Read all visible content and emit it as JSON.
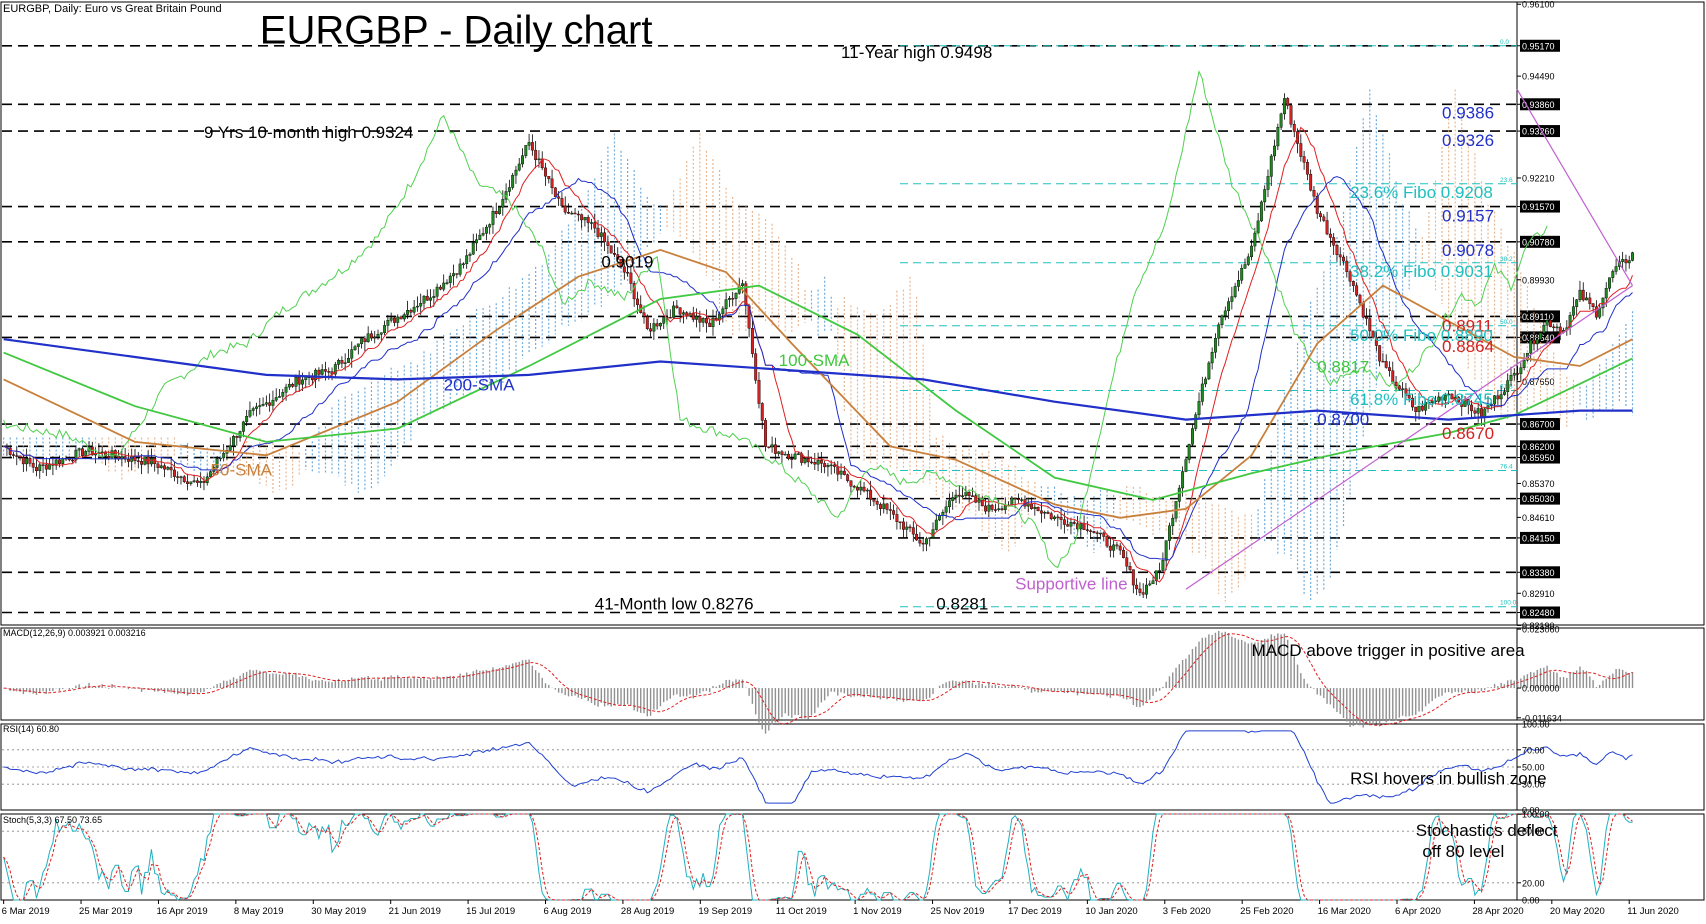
{
  "header": {
    "main": "EURGBP, Daily:  Euro vs Great Britain Pound",
    "macd": "MACD(12,26,9) 0.003921 0.003216",
    "rsi": "RSI(14) 60.80",
    "stoch": "Stoch(5,3,3) 67.50 73.65"
  },
  "colors": {
    "candle_up": "#208820",
    "candle_down": "#d42020",
    "sma50": "#c8803c",
    "sma100": "#40c840",
    "sma200": "#2030c8",
    "tenkan": "#e02020",
    "kijun": "#2030c8",
    "chikou": "#50d050",
    "cloud_bull": "#4090d0",
    "cloud_bear": "#e0a070",
    "fibo": "#20c0c0",
    "support": "#c060d0",
    "rsi": "#2040d0",
    "stoch_main": "#20b0c0",
    "stoch_signal": "#e02020",
    "macd_hist": "#909090",
    "macd_signal": "#e02020"
  },
  "price_scale": {
    "ymin": 0.822,
    "ymax": 0.9615,
    "ticks": [
      "0.96100",
      "0.95170",
      "0.94490",
      "0.93860",
      "0.93260",
      "0.92210",
      "0.91570",
      "0.90780",
      "0.89930",
      "0.89110",
      "0.88640",
      "0.87650",
      "0.86700",
      "0.86200",
      "0.85950",
      "0.85370",
      "0.85030",
      "0.84610",
      "0.84150",
      "0.83380",
      "0.82910",
      "0.82480",
      "0.82190"
    ],
    "highlighted": [
      "0.95170",
      "0.93860",
      "0.93260",
      "0.91570",
      "0.90780",
      "0.89110",
      "0.88640",
      "0.86700",
      "0.86200",
      "0.85950",
      "0.85030",
      "0.84150",
      "0.83380",
      "0.82480"
    ]
  },
  "dashed_levels": [
    0.9517,
    0.9386,
    0.9326,
    0.9157,
    0.9078,
    0.8911,
    0.8864,
    0.867,
    0.862,
    0.8595,
    0.8503,
    0.8415,
    0.8338,
    0.8248
  ],
  "fibo_levels": [
    {
      "price": 0.9517,
      "tag": "0.0"
    },
    {
      "price": 0.9208,
      "tag": "23.6"
    },
    {
      "price": 0.9031,
      "tag": "38.2"
    },
    {
      "price": 0.889,
      "tag": "50.0"
    },
    {
      "price": 0.8745,
      "tag": "61.8"
    },
    {
      "price": 0.8566,
      "tag": "76.4"
    },
    {
      "price": 0.8261,
      "tag": "100.0"
    }
  ],
  "annotations": {
    "title": "EURGBP - Daily chart",
    "high_11y": "11-Year high 0.9498",
    "high_9y": "9 Yrs 10-month high 0.9324",
    "level_9019": "0.9019",
    "low_41m": "41-Month low 0.8276",
    "low_8281": "0.8281",
    "sma100": "100-SMA",
    "sma200": "200-SMA",
    "sma50": "50-SMA",
    "support": "Supportive line",
    "r_9386": "0.9386",
    "r_9326": "0.9326",
    "fib236": "23.6% Fibo 0.9208",
    "r_9157": "0.9157",
    "r_9078": "0.9078",
    "fib382": "38.2% Fibo 0.9031",
    "r_8911": "0.8911",
    "fib500": "50.0% Fibo 0.8890",
    "r_8864": "0.8864",
    "r_8817": "0.8817",
    "fib618": "61.8% Fibo 0.8745",
    "r_8700": "0.8700",
    "r_8670": "0.8670",
    "macd_note": "MACD above trigger in positive area",
    "rsi_note": "RSI hovers in bullish zone",
    "stoch_note1": "Stochastics deflect",
    "stoch_note2": "off 80 level"
  },
  "macd_scale": {
    "ymin": -0.0125,
    "ymax": 0.0235,
    "ticks": [
      "0.023060",
      "0.000000",
      "-0.011634"
    ]
  },
  "rsi_scale": {
    "ticks": [
      "100.00",
      "70.00",
      "50.00",
      "30.00",
      "0.00"
    ]
  },
  "stoch_scale": {
    "ticks": [
      "100.00",
      "80.00",
      "20.00",
      "0.00"
    ]
  },
  "date_labels": [
    "6 Mar 2019",
    "25 Mar 2019",
    "16 Apr 2019",
    "8 May 2019",
    "30 May 2019",
    "21 Jun 2019",
    "15 Jul 2019",
    "6 Aug 2019",
    "28 Aug 2019",
    "19 Sep 2019",
    "11 Oct 2019",
    "1 Nov 2019",
    "25 Nov 2019",
    "17 Dec 2019",
    "10 Jan 2020",
    "3 Feb 2020",
    "25 Feb 2020",
    "16 Mar 2020",
    "6 Apr 2020",
    "28 Apr 2020",
    "20 May 2020",
    "11 Jun 2020"
  ],
  "chart_data": {
    "type": "candlestick",
    "title": "EURGBP, Daily:  Euro vs Great Britain Pound",
    "annotation": "EURGBP - Daily chart",
    "x_range": [
      "6 Mar 2019",
      "24 Jun 2020"
    ],
    "ylim": [
      0.8219,
      0.961
    ],
    "close_path": {
      "x": [
        0,
        10,
        25,
        45,
        60,
        75,
        90,
        100,
        110,
        120,
        130,
        140,
        150,
        160,
        170,
        180,
        190,
        196,
        205,
        215,
        225,
        232,
        240,
        250,
        260,
        270,
        280,
        290,
        300,
        310,
        320,
        330,
        340,
        346,
        352,
        360,
        370,
        380,
        390,
        400,
        410,
        420,
        430,
        440,
        450,
        460,
        466,
        470,
        475,
        480,
        485,
        490,
        496
      ],
      "y": [
        0.862,
        0.857,
        0.861,
        0.8585,
        0.8532,
        0.869,
        0.877,
        0.879,
        0.886,
        0.891,
        0.896,
        0.903,
        0.915,
        0.93,
        0.915,
        0.911,
        0.9,
        0.888,
        0.893,
        0.889,
        0.899,
        0.862,
        0.86,
        0.858,
        0.853,
        0.847,
        0.84,
        0.852,
        0.848,
        0.85,
        0.846,
        0.844,
        0.838,
        0.829,
        0.834,
        0.86,
        0.89,
        0.906,
        0.94,
        0.915,
        0.9,
        0.88,
        0.87,
        0.874,
        0.869,
        0.878,
        0.886,
        0.89,
        0.888,
        0.896,
        0.892,
        0.901,
        0.905
      ]
    },
    "series": [
      {
        "name": "50-SMA",
        "x": [
          0,
          40,
          80,
          120,
          150,
          175,
          200,
          220,
          240,
          270,
          290,
          320,
          340,
          360,
          380,
          400,
          420,
          440,
          460,
          480,
          496
        ],
        "y": [
          0.877,
          0.863,
          0.86,
          0.872,
          0.888,
          0.9,
          0.906,
          0.901,
          0.885,
          0.862,
          0.859,
          0.849,
          0.846,
          0.848,
          0.86,
          0.885,
          0.898,
          0.89,
          0.882,
          0.88,
          0.886
        ]
      },
      {
        "name": "100-SMA",
        "x": [
          0,
          40,
          80,
          120,
          160,
          200,
          230,
          260,
          290,
          320,
          350,
          380,
          410,
          440,
          460,
          480,
          496
        ],
        "y": [
          0.883,
          0.871,
          0.863,
          0.866,
          0.88,
          0.895,
          0.898,
          0.887,
          0.87,
          0.855,
          0.85,
          0.856,
          0.861,
          0.865,
          0.869,
          0.876,
          0.8817
        ]
      },
      {
        "name": "200-SMA",
        "x": [
          0,
          40,
          80,
          120,
          160,
          200,
          240,
          280,
          320,
          360,
          400,
          420,
          440,
          460,
          480,
          496
        ],
        "y": [
          0.886,
          0.882,
          0.878,
          0.877,
          0.878,
          0.881,
          0.879,
          0.877,
          0.872,
          0.868,
          0.87,
          0.869,
          0.868,
          0.869,
          0.87,
          0.87
        ]
      }
    ],
    "yticks": [
      "0.96100",
      "0.95170",
      "0.94490",
      "0.93860",
      "0.93260",
      "0.92210",
      "0.91570",
      "0.90780",
      "0.89930",
      "0.89110",
      "0.88640",
      "0.87650",
      "0.86700",
      "0.86200",
      "0.85950",
      "0.85370",
      "0.85030",
      "0.84610",
      "0.84150",
      "0.83380",
      "0.82910",
      "0.82480",
      "0.82190"
    ]
  }
}
